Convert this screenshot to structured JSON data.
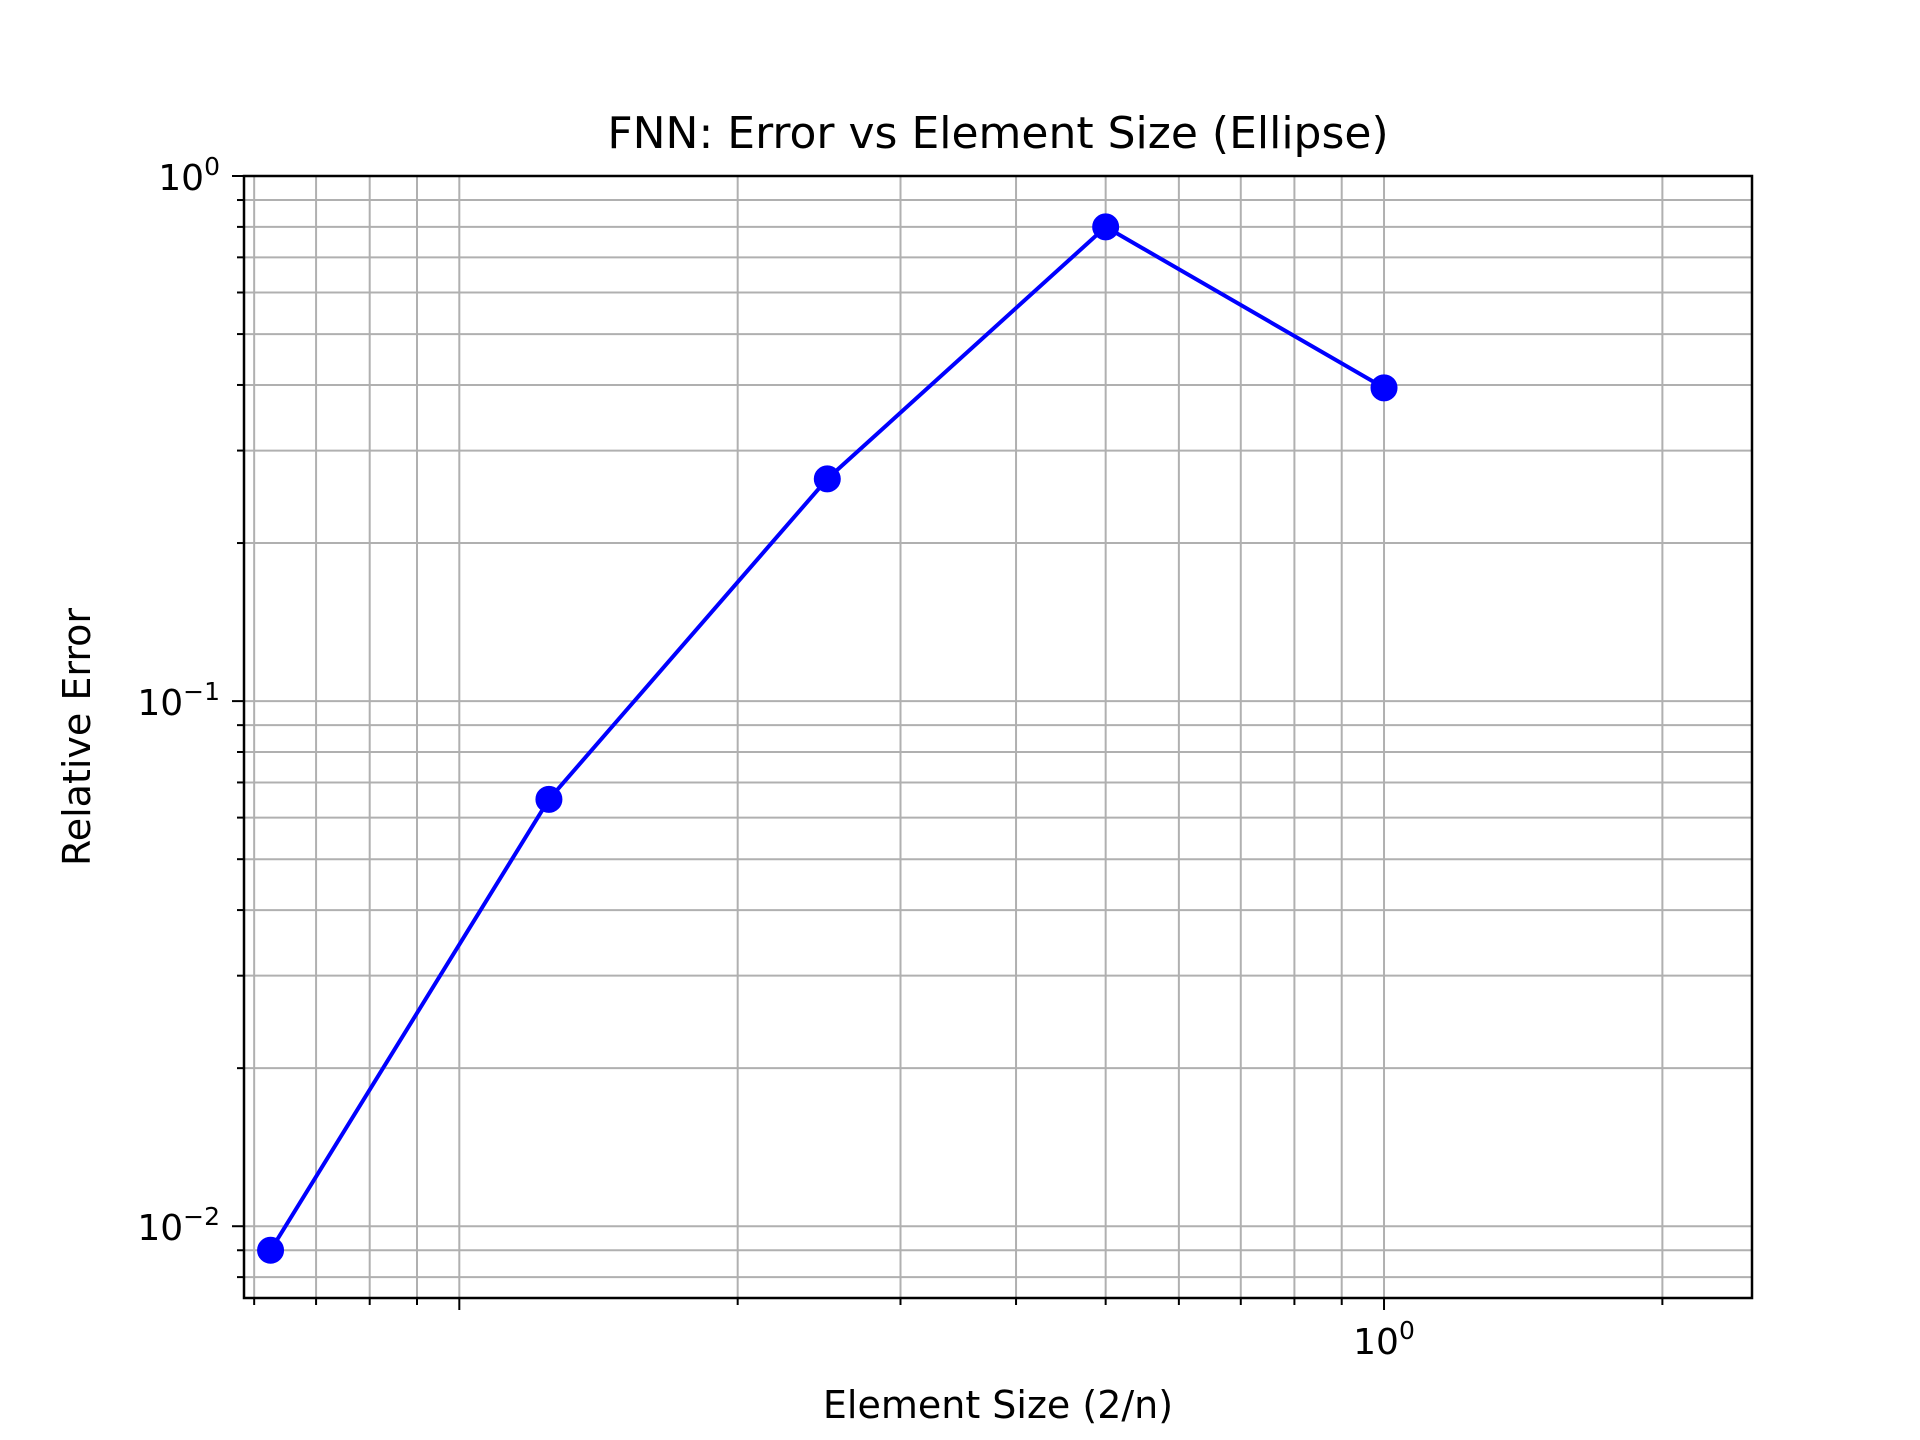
{
  "chart_data": {
    "type": "line",
    "title": "FNN: Error vs Element Size (Ellipse)",
    "xlabel": "Element Size (2/n)",
    "ylabel": "Relative Error",
    "x_scale": "log",
    "y_scale": "log",
    "xlim": [
      0.0585,
      2.5
    ],
    "ylim": [
      0.0073,
      1.0
    ],
    "grid": true,
    "grid_which": "both",
    "x_ticks": [
      {
        "value": 1,
        "base": "10",
        "exp": "0"
      }
    ],
    "y_ticks": [
      {
        "value": 1,
        "base": "10",
        "exp": "0"
      },
      {
        "value": 0.1,
        "base": "10",
        "exp": "−1"
      },
      {
        "value": 0.01,
        "base": "10",
        "exp": "−2"
      }
    ],
    "series": [
      {
        "color": "#0000ff",
        "marker": "circle",
        "x": [
          0.0625,
          0.125,
          0.25,
          0.5,
          1.0
        ],
        "y": [
          0.009,
          0.065,
          0.265,
          0.8,
          0.395
        ]
      }
    ]
  }
}
